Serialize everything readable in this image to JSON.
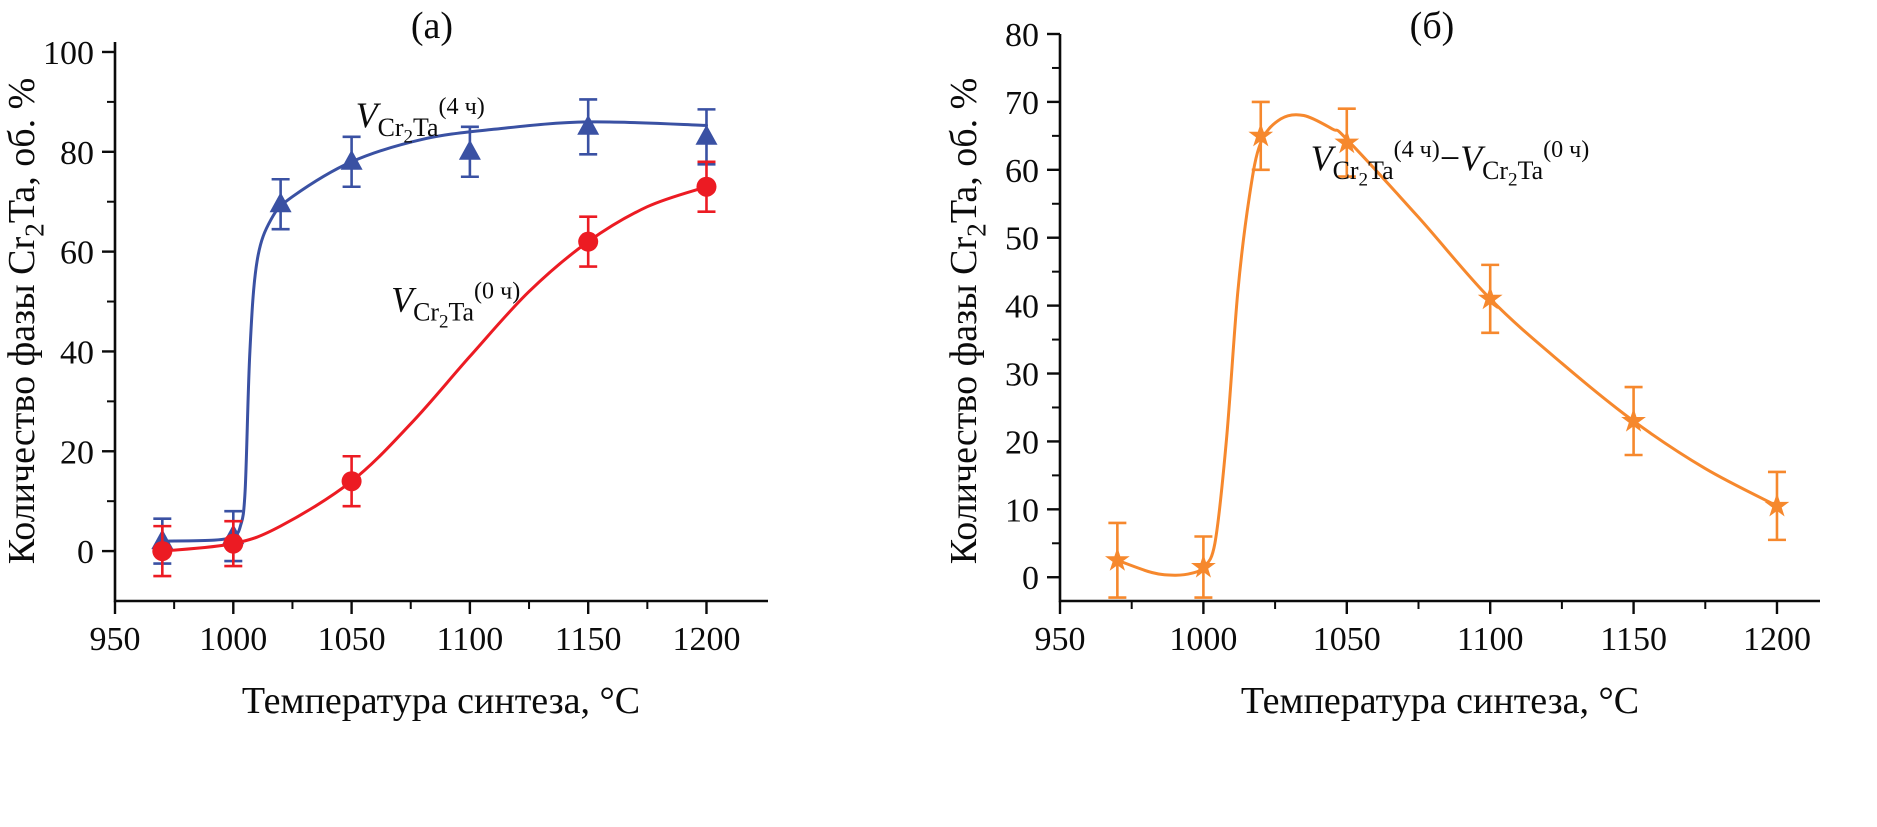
{
  "figure": {
    "background": "#ffffff",
    "text_color": "#0b0b0b"
  },
  "chart_data": [
    {
      "type": "line",
      "panel_id": "a",
      "panel_label": "(а)",
      "xlabel": "Температура синтеза, °C",
      "ylabel_segments": [
        {
          "text": "Количество фазы Cr"
        },
        {
          "text": "2",
          "script": "sub"
        },
        {
          "text": "Ta, об. %"
        }
      ],
      "xlim": [
        950,
        1226
      ],
      "ylim": [
        -10,
        102
      ],
      "x_major_ticks": [
        950,
        1000,
        1050,
        1100,
        1150,
        1200
      ],
      "x_minor_ticks": [
        975,
        1025,
        1075,
        1125,
        1175
      ],
      "y_major_ticks": [
        0,
        20,
        40,
        60,
        80,
        100
      ],
      "y_minor_ticks": [
        10,
        30,
        50,
        70,
        90
      ],
      "series": [
        {
          "id": "v-4h",
          "name": "V Cr2Ta (4 ч)",
          "color": "#3a51a3",
          "marker": "triangle",
          "x": [
            970,
            1000,
            1020,
            1050,
            1100,
            1150,
            1200
          ],
          "y": [
            2,
            3,
            69.5,
            78,
            80,
            85,
            83
          ],
          "yerr": [
            4.5,
            5,
            5,
            5,
            5,
            5.5,
            5.5
          ],
          "curve": [
            [
              970,
              2
            ],
            [
              992,
              2.2
            ],
            [
              1000,
              3
            ],
            [
              1003,
              5
            ],
            [
              1005,
              12
            ],
            [
              1007,
              40
            ],
            [
              1010,
              58
            ],
            [
              1016,
              66.5
            ],
            [
              1025,
              71
            ],
            [
              1050,
              78
            ],
            [
              1080,
              82.5
            ],
            [
              1110,
              84.5
            ],
            [
              1150,
              86
            ],
            [
              1200,
              85.3
            ]
          ]
        },
        {
          "id": "v-0h",
          "name": "V Cr2Ta (0 ч)",
          "color": "#ec1b23",
          "marker": "circle",
          "x": [
            970,
            1000,
            1050,
            1150,
            1200
          ],
          "y": [
            0,
            1.5,
            14,
            62,
            73
          ],
          "yerr": [
            5,
            4.5,
            5,
            5,
            5
          ],
          "curve": [
            [
              970,
              0
            ],
            [
              1000,
              1.5
            ],
            [
              1020,
              5
            ],
            [
              1050,
              14
            ],
            [
              1075,
              25.5
            ],
            [
              1100,
              39
            ],
            [
              1125,
              52
            ],
            [
              1150,
              62
            ],
            [
              1175,
              69
            ],
            [
              1200,
              73
            ]
          ]
        }
      ],
      "annotations": [
        {
          "x": 1079,
          "y": 85,
          "segments": [
            {
              "text": "V",
              "italic": true
            },
            {
              "text": "Cr",
              "script": "sub"
            },
            {
              "text": "2",
              "script": "subsub"
            },
            {
              "text": "Ta",
              "script": "sub"
            },
            {
              "text": "(4 ч)",
              "script": "sup"
            }
          ]
        },
        {
          "x": 1094,
          "y": 48,
          "segments": [
            {
              "text": "V",
              "italic": true
            },
            {
              "text": "Cr",
              "script": "sub"
            },
            {
              "text": "2",
              "script": "subsub"
            },
            {
              "text": "Ta",
              "script": "sub"
            },
            {
              "text": "(0 ч)",
              "script": "sup"
            }
          ]
        }
      ]
    },
    {
      "type": "line",
      "panel_id": "b",
      "panel_label": "(б)",
      "xlabel": "Температура синтеза, °C",
      "ylabel_segments": [
        {
          "text": "Количество фазы Cr"
        },
        {
          "text": "2",
          "script": "sub"
        },
        {
          "text": "Ta, об. %"
        }
      ],
      "xlim": [
        950,
        1215
      ],
      "ylim": [
        -3.5,
        80
      ],
      "x_major_ticks": [
        950,
        1000,
        1050,
        1100,
        1150,
        1200
      ],
      "x_minor_ticks": [
        975,
        1025,
        1075,
        1125,
        1175
      ],
      "y_major_ticks": [
        0,
        10,
        20,
        30,
        40,
        50,
        60,
        70,
        80
      ],
      "y_minor_ticks": [
        5,
        15,
        25,
        35,
        45,
        55,
        65,
        75
      ],
      "series": [
        {
          "id": "v-diff",
          "name": "V Cr2Ta (4 ч) − V Cr2Ta (0 ч)",
          "color": "#f6882d",
          "marker": "star",
          "x": [
            970,
            1000,
            1020,
            1050,
            1100,
            1150,
            1200
          ],
          "y": [
            2.5,
            1.5,
            65,
            64,
            41,
            23,
            10.5
          ],
          "yerr": [
            5.5,
            4.5,
            5,
            5,
            5,
            5,
            5
          ],
          "curve": [
            [
              970,
              2.5
            ],
            [
              982,
              0.7
            ],
            [
              990,
              0.3
            ],
            [
              996,
              0.6
            ],
            [
              1000,
              1.5
            ],
            [
              1004,
              5
            ],
            [
              1008,
              20
            ],
            [
              1012,
              42
            ],
            [
              1016,
              56
            ],
            [
              1020,
              64
            ],
            [
              1027,
              67.5
            ],
            [
              1035,
              68
            ],
            [
              1045,
              66
            ],
            [
              1050,
              64.5
            ],
            [
              1075,
              53
            ],
            [
              1100,
              41
            ],
            [
              1125,
              31.5
            ],
            [
              1150,
              23
            ],
            [
              1175,
              16
            ],
            [
              1200,
              10.5
            ]
          ]
        }
      ],
      "annotations": [
        {
          "x": 1086,
          "y": 60,
          "segments": [
            {
              "text": "V",
              "italic": true
            },
            {
              "text": "Cr",
              "script": "sub"
            },
            {
              "text": "2",
              "script": "subsub"
            },
            {
              "text": "Ta",
              "script": "sub"
            },
            {
              "text": "(4 ч)",
              "script": "sup"
            },
            {
              "text": "−"
            },
            {
              "text": "V",
              "italic": true
            },
            {
              "text": "Cr",
              "script": "sub"
            },
            {
              "text": "2",
              "script": "subsub"
            },
            {
              "text": "Ta",
              "script": "sub"
            },
            {
              "text": "(0 ч)",
              "script": "sup"
            }
          ]
        }
      ]
    }
  ]
}
